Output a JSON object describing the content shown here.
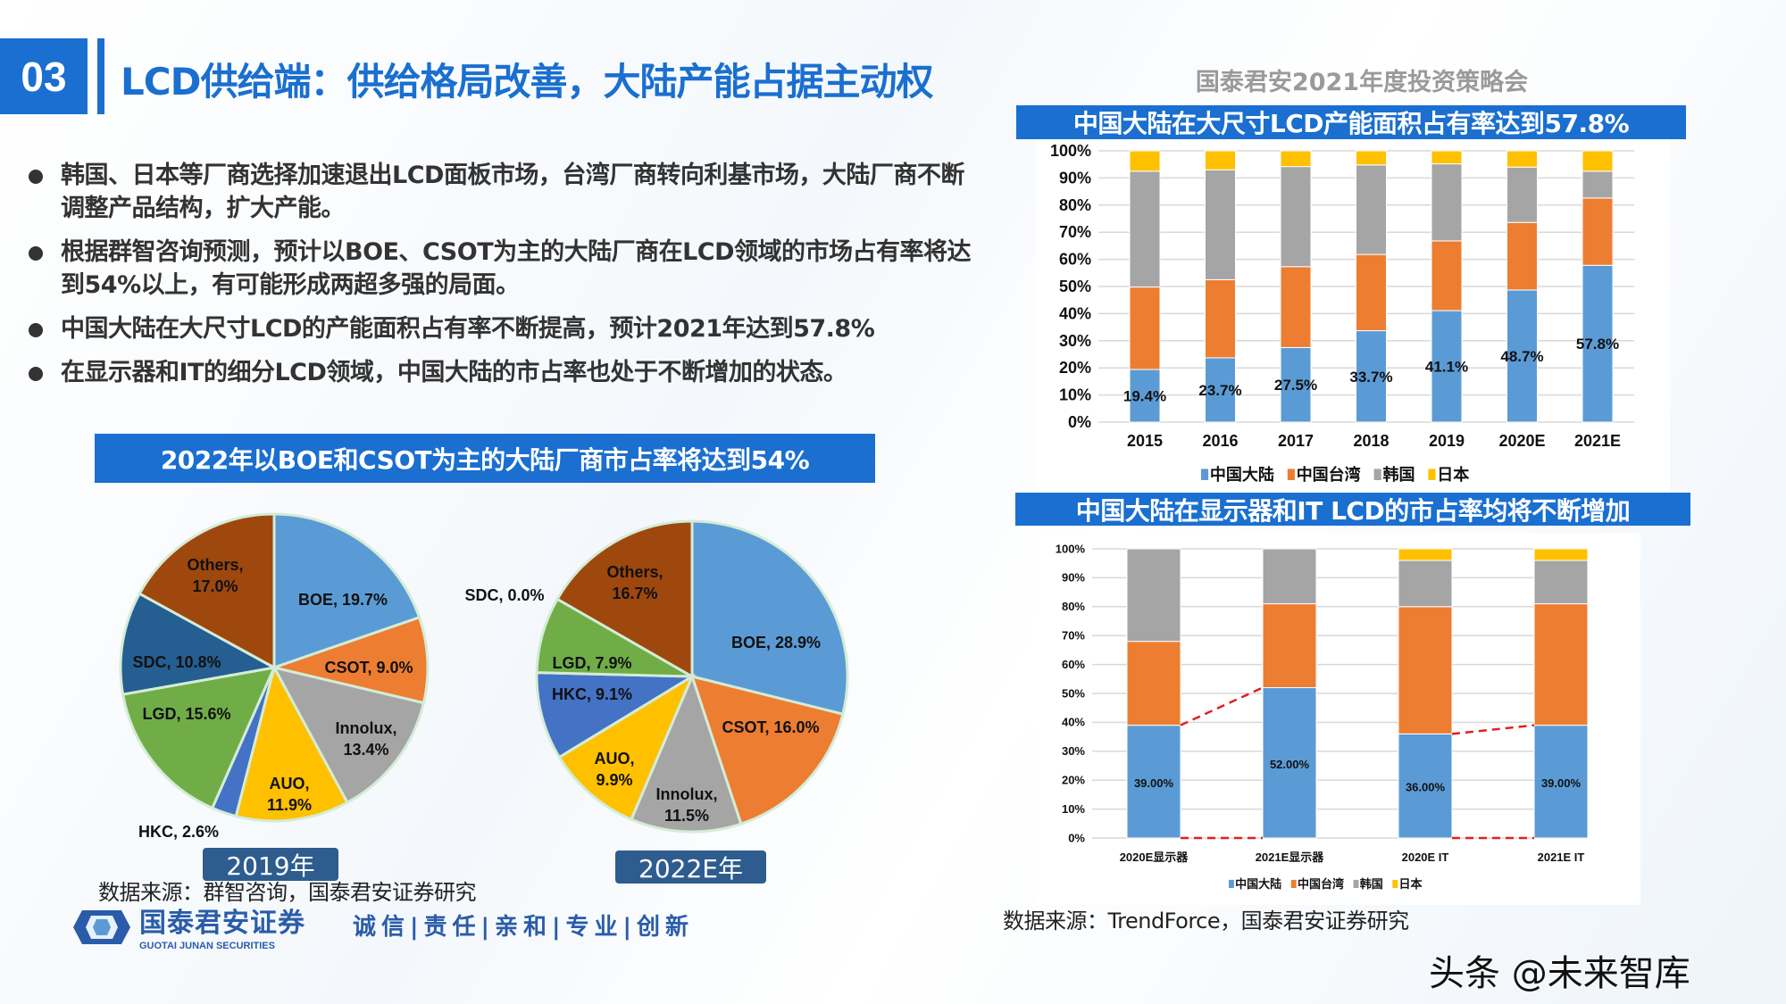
{
  "header": {
    "section_number": "03",
    "title": "LCD供给端：供给格局改善，大陆产能占据主动权",
    "conference": "国泰君安2021年度投资策略会"
  },
  "bullets": [
    "韩国、日本等厂商选择加速退出LCD面板市场，台湾厂商转向利基市场，大陆厂商不断调整产品结构，扩大产能。",
    "根据群智咨询预测，预计以BOE、CSOT为主的大陆厂商在LCD领域的市场占有率将达到54%以上，有可能形成两超多强的局面。",
    "中国大陆在大尺寸LCD的产能面积占有率不断提高，预计2021年达到57.8%",
    "在显示器和IT的细分LCD领域，中国大陆的市占率也处于不断增加的状态。"
  ],
  "left_banner": "2022年以BOE和CSOT为主的大陆厂商市占率将达到54%",
  "right_banner_top": "中国大陆在大尺寸LCD产能面积占有率达到57.8%",
  "right_banner_bottom": "中国大陆在显示器和IT LCD的市占率均将不断增加",
  "source_left": "数据来源：群智咨询，国泰君安证券研究",
  "source_right": "数据来源：TrendForce，国泰君安证券研究",
  "footer": {
    "logo": "国泰君安证券",
    "logo_en": "GUOTAI JUNAN SECURITIES",
    "motto": "诚信|责任|亲和|专业|创新"
  },
  "watermark": "头条 @未来智库",
  "chart_data": [
    {
      "type": "pie",
      "title": "2019年",
      "slices": [
        {
          "name": "BOE",
          "value": 19.7,
          "label": "BOE, 19.7%",
          "color": "#5b9bd5"
        },
        {
          "name": "CSOT",
          "value": 9.0,
          "label": "CSOT, 9.0%",
          "color": "#ed7d31"
        },
        {
          "name": "Innolux",
          "value": 13.4,
          "label": "Innolux,\n13.4%",
          "color": "#a5a5a5"
        },
        {
          "name": "AUO",
          "value": 11.9,
          "label": "AUO,\n11.9%",
          "color": "#ffc000"
        },
        {
          "name": "HKC",
          "value": 2.6,
          "label": "HKC, 2.6%",
          "color": "#4472c4"
        },
        {
          "name": "LGD",
          "value": 15.6,
          "label": "LGD, 15.6%",
          "color": "#70ad47"
        },
        {
          "name": "SDC",
          "value": 10.8,
          "label": "SDC, 10.8%",
          "color": "#255e91"
        },
        {
          "name": "Others",
          "value": 17.0,
          "label": "Others,\n17.0%",
          "color": "#9e480e"
        }
      ]
    },
    {
      "type": "pie",
      "title": "2022E年",
      "slices": [
        {
          "name": "BOE",
          "value": 28.9,
          "label": "BOE, 28.9%",
          "color": "#5b9bd5"
        },
        {
          "name": "CSOT",
          "value": 16.0,
          "label": "CSOT, 16.0%",
          "color": "#ed7d31"
        },
        {
          "name": "Innolux",
          "value": 11.5,
          "label": "Innolux,\n11.5%",
          "color": "#a5a5a5"
        },
        {
          "name": "AUO",
          "value": 9.9,
          "label": "AUO,\n9.9%",
          "color": "#ffc000"
        },
        {
          "name": "HKC",
          "value": 9.1,
          "label": "HKC, 9.1%",
          "color": "#4472c4"
        },
        {
          "name": "LGD",
          "value": 7.9,
          "label": "LGD, 7.9%",
          "color": "#70ad47"
        },
        {
          "name": "SDC",
          "value": 0.0,
          "label": "SDC, 0.0%",
          "color": "#255e91"
        },
        {
          "name": "Others",
          "value": 16.7,
          "label": "Others,\n16.7%",
          "color": "#9e480e"
        }
      ]
    },
    {
      "type": "bar",
      "stacked": true,
      "grid": true,
      "legend": "bottom",
      "categories": [
        "2015",
        "2016",
        "2017",
        "2018",
        "2019",
        "2020E",
        "2021E"
      ],
      "yticks": [
        "0%",
        "10%",
        "20%",
        "30%",
        "40%",
        "50%",
        "60%",
        "70%",
        "80%",
        "90%",
        "100%"
      ],
      "ylim": [
        0,
        100
      ],
      "series": [
        {
          "name": "中国大陆",
          "color": "#5b9bd5",
          "values": [
            19.4,
            23.7,
            27.5,
            33.7,
            41.1,
            48.7,
            57.8
          ],
          "labels": [
            "19.4%",
            "23.7%",
            "27.5%",
            "33.7%",
            "41.1%",
            "48.7%",
            "57.8%"
          ]
        },
        {
          "name": "中国台湾",
          "color": "#ed7d31",
          "values": [
            30.4,
            28.8,
            29.8,
            28.1,
            25.7,
            24.9,
            24.8
          ]
        },
        {
          "name": "韩国",
          "color": "#a5a5a5",
          "values": [
            42.7,
            40.5,
            36.9,
            33.0,
            28.4,
            20.4,
            9.9
          ]
        },
        {
          "name": "日本",
          "color": "#ffc000",
          "values": [
            7.5,
            7.0,
            5.8,
            5.2,
            4.8,
            6.0,
            7.5
          ]
        }
      ]
    },
    {
      "type": "bar",
      "stacked": true,
      "grid": true,
      "legend": "bottom",
      "categories": [
        "2020E显示器",
        "2021E显示器",
        "2020E IT",
        "2021E  IT"
      ],
      "yticks": [
        "0%",
        "10%",
        "20%",
        "30%",
        "40%",
        "50%",
        "60%",
        "70%",
        "80%",
        "90%",
        "100%"
      ],
      "ylim": [
        0,
        100
      ],
      "series": [
        {
          "name": "中国大陆",
          "color": "#5b9bd5",
          "values": [
            39,
            52,
            36,
            39
          ],
          "labels": [
            "39.00%",
            "52.00%",
            "36.00%",
            "39.00%"
          ]
        },
        {
          "name": "中国台湾",
          "color": "#ed7d31",
          "values": [
            29,
            29,
            44,
            42
          ]
        },
        {
          "name": "韩国",
          "color": "#a5a5a5",
          "values": [
            32,
            19,
            16,
            15
          ]
        },
        {
          "name": "日本",
          "color": "#ffc000",
          "values": [
            0,
            0,
            4,
            4
          ]
        }
      ],
      "annotation_color": "#e02020"
    }
  ]
}
